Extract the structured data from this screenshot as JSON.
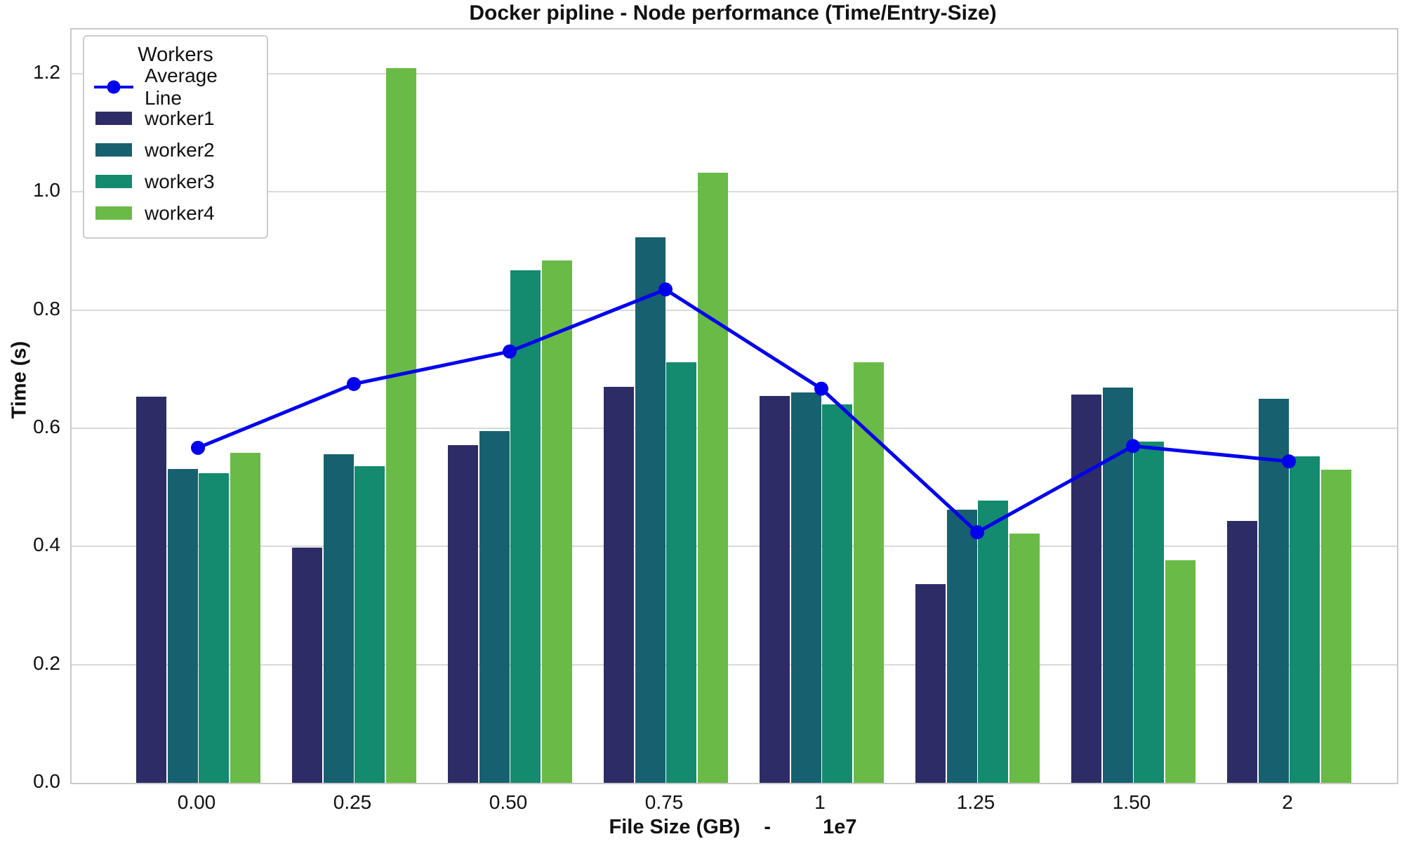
{
  "chart_data": {
    "type": "bar",
    "title": "Docker pipline - Node performance (Time/Entry-Size)",
    "ylabel": "Time (s)",
    "xlabel": "File Size (GB)",
    "xlabel_separator": "-",
    "x_axis_offset": "1e7",
    "categories": [
      "0.00",
      "0.25",
      "0.50",
      "0.75",
      "1",
      "1.25",
      "1.50",
      "2"
    ],
    "series": [
      {
        "name": "worker1",
        "color": "#2e2c66",
        "values": [
          0.654,
          0.398,
          0.572,
          0.67,
          0.655,
          0.336,
          0.657,
          0.443
        ]
      },
      {
        "name": "worker2",
        "color": "#17606f",
        "values": [
          0.531,
          0.556,
          0.595,
          0.923,
          0.661,
          0.462,
          0.669,
          0.65
        ]
      },
      {
        "name": "worker3",
        "color": "#148a6e",
        "values": [
          0.524,
          0.536,
          0.867,
          0.712,
          0.641,
          0.478,
          0.578,
          0.552
        ]
      },
      {
        "name": "worker4",
        "color": "#6aba47",
        "values": [
          0.559,
          1.21,
          0.884,
          1.033,
          0.712,
          0.422,
          0.377,
          0.53
        ]
      }
    ],
    "average_series": {
      "name": "Average Line",
      "color": "#0000ee",
      "values": [
        0.567,
        0.675,
        0.73,
        0.835,
        0.667,
        0.424,
        0.57,
        0.544
      ]
    },
    "legend": {
      "title": "Workers",
      "position": "upper-left"
    },
    "yticks": [
      0.0,
      0.2,
      0.4,
      0.6,
      0.8,
      1.0,
      1.2
    ],
    "ytick_labels": [
      "0.0",
      "0.2",
      "0.4",
      "0.6",
      "0.8",
      "1.0",
      "1.2"
    ],
    "ylim": [
      0,
      1.275
    ],
    "grid": true,
    "colors": {
      "grid": "#d9d9d9",
      "plot_border": "#c9c9c9",
      "background": "#ffffff",
      "text": "#111111"
    }
  }
}
